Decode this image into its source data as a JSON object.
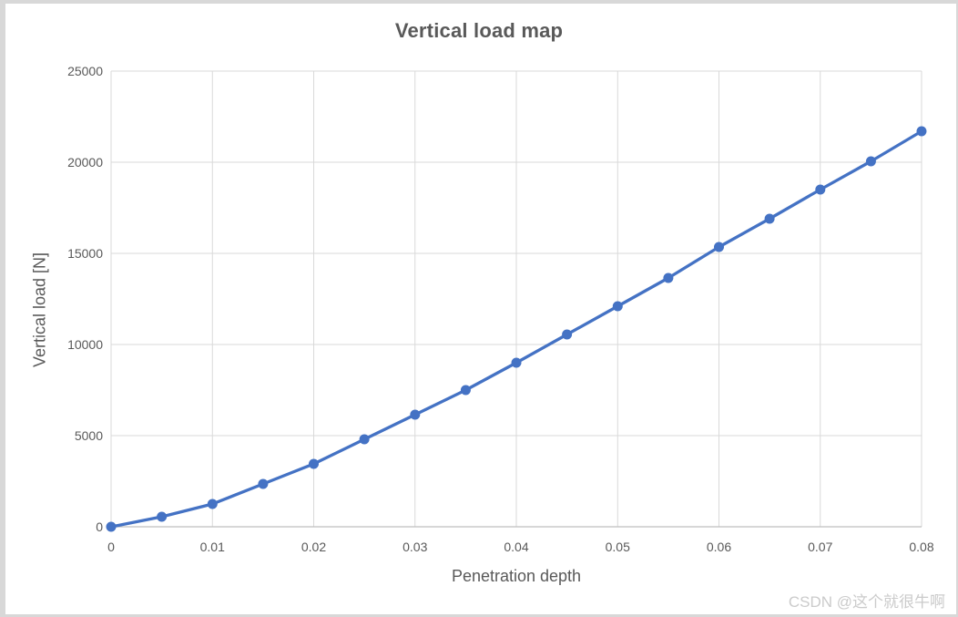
{
  "chart_data": {
    "type": "line",
    "title": "Vertical load map",
    "xlabel": "Penetration depth",
    "ylabel": "Vertical load [N]",
    "x": [
      0,
      0.005,
      0.01,
      0.015,
      0.02,
      0.025,
      0.03,
      0.035,
      0.04,
      0.045,
      0.05,
      0.055,
      0.06,
      0.065,
      0.07,
      0.075,
      0.08
    ],
    "values": [
      0,
      550,
      1250,
      2350,
      3450,
      4800,
      6150,
      7500,
      9000,
      10550,
      12100,
      13650,
      15350,
      16900,
      18500,
      20050,
      21700
    ],
    "xlim": [
      0,
      0.08
    ],
    "ylim": [
      0,
      25000
    ],
    "x_ticks": [
      0,
      0.01,
      0.02,
      0.03,
      0.04,
      0.05,
      0.06,
      0.07,
      0.08
    ],
    "x_tick_labels": [
      "0",
      "0.01",
      "0.02",
      "0.03",
      "0.04",
      "0.05",
      "0.06",
      "0.07",
      "0.08"
    ],
    "y_ticks": [
      0,
      5000,
      10000,
      15000,
      20000,
      25000
    ],
    "y_tick_labels": [
      "0",
      "5000",
      "10000",
      "15000",
      "20000",
      "25000"
    ],
    "grid": true,
    "legend": "none",
    "line_color": "#4472C4",
    "marker_color": "#4472C4",
    "gridline_color": "#D9D9D9",
    "axis_line_color": "#BFBFBF",
    "text_color": "#595959"
  },
  "watermark": {
    "text": "CSDN @这个就很牛啊"
  }
}
